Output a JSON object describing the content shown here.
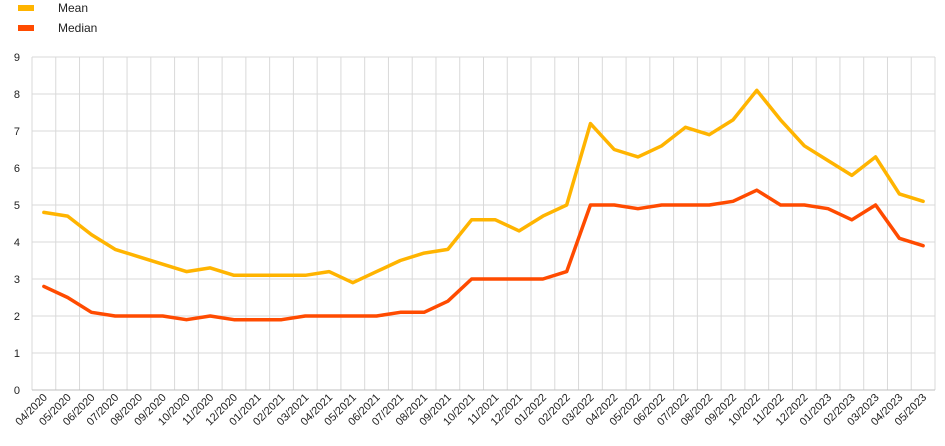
{
  "chart_data": {
    "type": "line",
    "title": "",
    "xlabel": "",
    "ylabel": "",
    "ylim": [
      0,
      9
    ],
    "yticks": [
      0,
      1,
      2,
      3,
      4,
      5,
      6,
      7,
      8,
      9
    ],
    "grid": true,
    "legend_position": "top-left",
    "categories": [
      "04/2020",
      "05/2020",
      "06/2020",
      "07/2020",
      "08/2020",
      "09/2020",
      "10/2020",
      "11/2020",
      "12/2020",
      "01/2021",
      "02/2021",
      "03/2021",
      "04/2021",
      "05/2021",
      "06/2021",
      "07/2021",
      "08/2021",
      "09/2021",
      "10/2021",
      "11/2021",
      "12/2021",
      "01/2022",
      "02/2022",
      "03/2022",
      "04/2022",
      "05/2022",
      "06/2022",
      "07/2022",
      "08/2022",
      "09/2022",
      "10/2022",
      "11/2022",
      "12/2022",
      "01/2023",
      "02/2023",
      "03/2023",
      "04/2023",
      "05/2023"
    ],
    "series": [
      {
        "name": "Mean",
        "color": "#FFB400",
        "values": [
          4.8,
          4.7,
          4.2,
          3.8,
          3.6,
          3.4,
          3.2,
          3.3,
          3.1,
          3.1,
          3.1,
          3.1,
          3.2,
          2.9,
          3.2,
          3.5,
          3.7,
          3.8,
          4.6,
          4.6,
          4.3,
          4.7,
          5.0,
          7.2,
          6.5,
          6.3,
          6.6,
          7.1,
          6.9,
          7.3,
          8.1,
          7.3,
          6.6,
          6.2,
          5.8,
          6.3,
          5.3,
          5.1
        ]
      },
      {
        "name": "Median",
        "color": "#FF4B00",
        "values": [
          2.8,
          2.5,
          2.1,
          2.0,
          2.0,
          2.0,
          1.9,
          2.0,
          1.9,
          1.9,
          1.9,
          2.0,
          2.0,
          2.0,
          2.0,
          2.1,
          2.1,
          2.4,
          3.0,
          3.0,
          3.0,
          3.0,
          3.2,
          5.0,
          5.0,
          4.9,
          5.0,
          5.0,
          5.0,
          5.1,
          5.4,
          5.0,
          5.0,
          4.9,
          4.6,
          5.0,
          4.1,
          3.9
        ]
      }
    ]
  }
}
